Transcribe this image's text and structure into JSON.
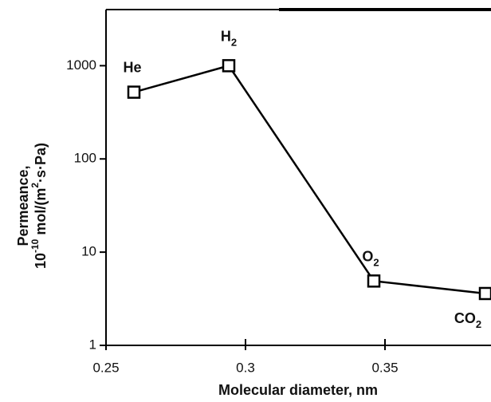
{
  "chart_data": {
    "type": "line",
    "log_y": true,
    "xlabel": "Molecular diameter, nm",
    "ylabel": {
      "line1": "Permeance,",
      "line2": [
        {
          "text": "10"
        },
        {
          "text": "-10",
          "sup": true
        },
        {
          "text": " mol/(m"
        },
        {
          "text": "2",
          "sup": true
        },
        {
          "text": "·s·Pa)"
        }
      ]
    },
    "x": [
      0.26,
      0.294,
      0.346,
      0.386
    ],
    "values": [
      520,
      1000,
      4.9,
      3.6
    ],
    "point_labels": [
      {
        "base": "He"
      },
      {
        "base": "H",
        "sub": "2"
      },
      {
        "base": "O",
        "sub": "2"
      },
      {
        "base": "CO",
        "sub": "2"
      }
    ],
    "color": "#000000",
    "xlim": [
      0.25,
      0.388
    ],
    "xticks": [
      0.25,
      0.3,
      0.35
    ],
    "ylim": [
      1,
      4000
    ],
    "yticks": [
      1,
      10,
      100,
      1000
    ]
  }
}
